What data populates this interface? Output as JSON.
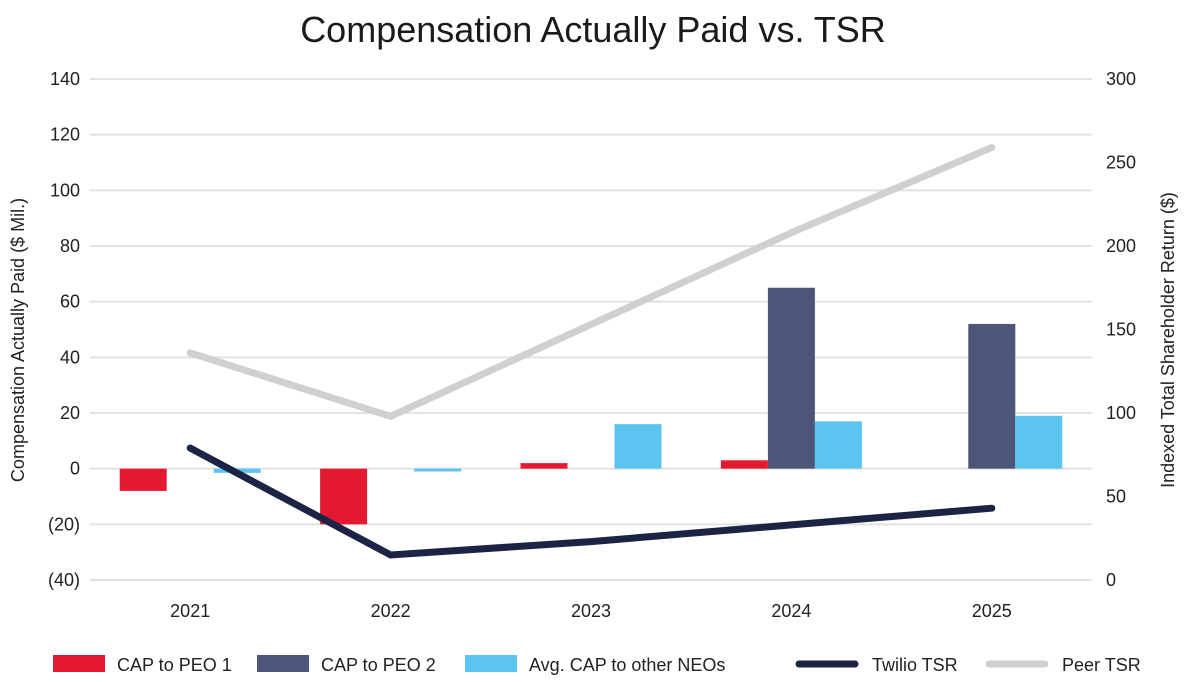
{
  "chart_data": {
    "type": "bar",
    "title": "Compensation Actually Paid vs. TSR",
    "xlabel": "",
    "ylabel": "Compensation Actually Paid ($ Mil.)",
    "y2label": "Indexed Total Shareholder Return ($)",
    "categories": [
      "2021",
      "2022",
      "2023",
      "2024",
      "2025"
    ],
    "ylim": [
      -40,
      140
    ],
    "yticks": [
      -40,
      -20,
      0,
      20,
      40,
      60,
      80,
      100,
      120,
      140
    ],
    "ytick_labels": [
      "(40)",
      "(20)",
      "0",
      "20",
      "40",
      "60",
      "80",
      "100",
      "120",
      "140"
    ],
    "y2lim": [
      0,
      300
    ],
    "y2ticks": [
      0,
      50,
      100,
      150,
      200,
      250,
      300
    ],
    "y2tick_labels": [
      "0",
      "50",
      "100",
      "150",
      "200",
      "250",
      "300"
    ],
    "grid": true,
    "legend_position": "bottom",
    "series": [
      {
        "name": "CAP to PEO 1",
        "type": "bar",
        "axis": "left",
        "color": "#e31931",
        "values": [
          -8,
          -20,
          2,
          3,
          null
        ]
      },
      {
        "name": "CAP to PEO 2",
        "type": "bar",
        "axis": "left",
        "color": "#4d5678",
        "values": [
          null,
          null,
          null,
          65,
          52
        ]
      },
      {
        "name": "Avg. CAP to other NEOs",
        "type": "bar",
        "axis": "left",
        "color": "#5bc5f0",
        "values": [
          -1.5,
          -1,
          16,
          17,
          19
        ]
      },
      {
        "name": "Twilio TSR",
        "type": "line",
        "axis": "right",
        "color": "#1b2444",
        "values": [
          79,
          15,
          23,
          33,
          43
        ]
      },
      {
        "name": "Peer TSR",
        "type": "line",
        "axis": "right",
        "color": "#cfd0cf",
        "values": [
          136,
          98,
          153,
          208,
          259
        ]
      }
    ]
  }
}
